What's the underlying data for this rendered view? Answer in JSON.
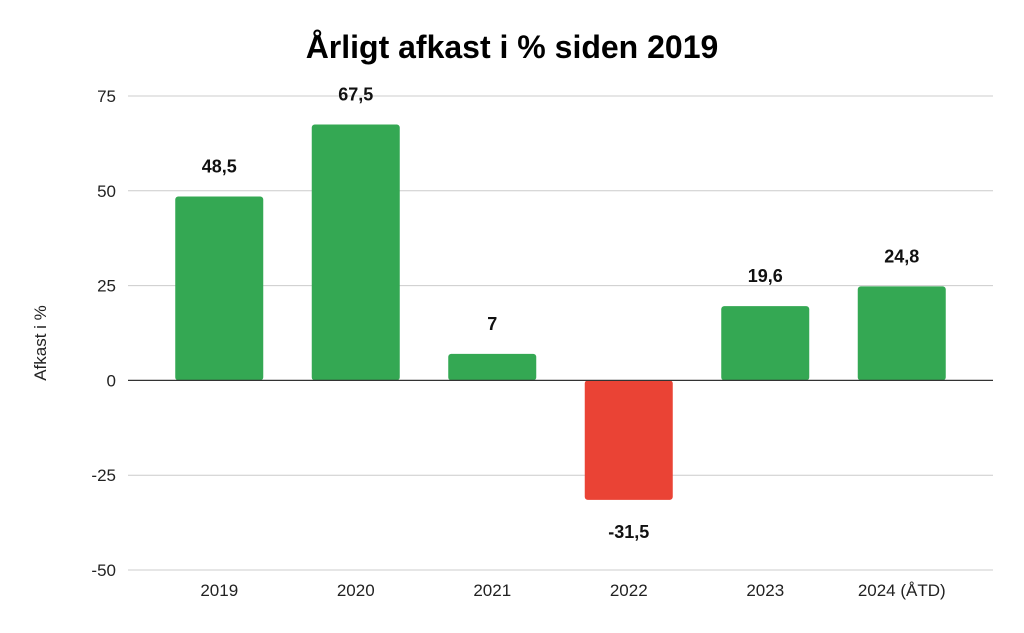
{
  "chart_data": {
    "type": "bar",
    "title": "Årligt afkast i % siden 2019",
    "ylabel": "Afkast i %",
    "xlabel": "",
    "categories": [
      "2019",
      "2020",
      "2021",
      "2022",
      "2023",
      "2024 (ÅTD)"
    ],
    "values": [
      48.5,
      67.5,
      7,
      -31.5,
      19.6,
      24.8
    ],
    "data_labels": [
      "48,5",
      "67,5",
      "7",
      "-31,5",
      "19,6",
      "24,8"
    ],
    "ylim": [
      -50,
      75
    ],
    "yticks": [
      75,
      50,
      25,
      0,
      -25,
      -50
    ],
    "ytick_labels": [
      "75",
      "50",
      "25",
      "0",
      "-25",
      "-50"
    ],
    "grid": true,
    "colors": {
      "positive": "#34a853",
      "negative": "#ea4335"
    }
  }
}
